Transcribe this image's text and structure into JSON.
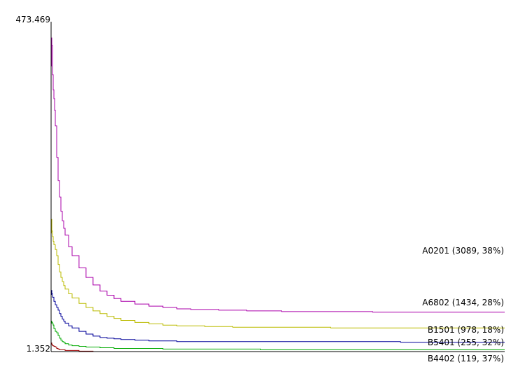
{
  "chart_data": {
    "type": "line",
    "title": "",
    "xlabel": "",
    "ylabel": "",
    "ylim": [
      1.352,
      473.469
    ],
    "y_tick_labels": [
      "473.469",
      "1.352"
    ],
    "grid": false,
    "legend": "end-of-line labels",
    "series": [
      {
        "name": "A0201 (3089, 38%)",
        "color": "#aa00aa",
        "x": [
          0,
          0.5,
          1,
          2,
          3,
          4,
          5,
          6,
          8,
          10,
          12,
          14,
          16,
          18,
          20,
          25,
          30,
          40,
          50,
          60,
          70,
          80,
          90,
          100,
          120,
          140,
          160,
          180,
          200,
          240,
          280,
          330,
          400,
          460,
          510,
          580,
          649
        ],
        "values": [
          420,
          461,
          450,
          407,
          385,
          372,
          355,
          332,
          286,
          252,
          228,
          207,
          193,
          182,
          172,
          155,
          142,
          124,
          110,
          99,
          90,
          84,
          79,
          75,
          71,
          68,
          66,
          64,
          63,
          62,
          61,
          60,
          60,
          59,
          59,
          59,
          59
        ]
      },
      {
        "name": "A6802 (1434, 28%)",
        "color": "#bbbb00",
        "x": [
          0,
          0.5,
          1,
          2,
          3,
          4,
          6,
          8,
          10,
          12,
          14,
          16,
          18,
          20,
          25,
          30,
          40,
          50,
          60,
          70,
          80,
          90,
          100,
          120,
          140,
          160,
          180,
          220,
          260,
          300,
          400,
          500,
          649
        ],
        "values": [
          175,
          195,
          178,
          170,
          163,
          158,
          151,
          142,
          129,
          118,
          110,
          104,
          98,
          93,
          86,
          80,
          72,
          66,
          61,
          57,
          53,
          50,
          47,
          44,
          42,
          40,
          39,
          38,
          37,
          37,
          36,
          36,
          36
        ]
      },
      {
        "name": "B1501 (978, 18%)",
        "color": "#000099",
        "x": [
          0,
          0.5,
          1,
          2,
          4,
          6,
          8,
          10,
          12,
          14,
          16,
          18,
          20,
          25,
          30,
          40,
          50,
          60,
          70,
          80,
          90,
          100,
          120,
          140,
          160,
          180,
          220,
          260,
          300,
          400,
          500,
          649
        ],
        "values": [
          85,
          91,
          86,
          81,
          75,
          70,
          66,
          62,
          57,
          53,
          49,
          46,
          43,
          39,
          36,
          31,
          27,
          24,
          22,
          21,
          20,
          19,
          18,
          17,
          17,
          16,
          16,
          16,
          16,
          16,
          15,
          15
        ]
      },
      {
        "name": "B5401 (255, 32%)",
        "color": "#00aa00",
        "x": [
          0,
          0.5,
          1,
          2,
          3,
          4,
          6,
          8,
          10,
          12,
          14,
          16,
          18,
          20,
          25,
          30,
          40,
          50,
          60,
          70,
          80,
          90,
          100,
          120,
          140,
          160,
          200,
          260,
          300,
          400,
          500,
          649
        ],
        "values": [
          43,
          46,
          44,
          42,
          40,
          35,
          31,
          29,
          25,
          21,
          18,
          16,
          15,
          13,
          11,
          10,
          9,
          8,
          8,
          7,
          7,
          6,
          6,
          6,
          6,
          5,
          5,
          5,
          4,
          4,
          4,
          4
        ]
      },
      {
        "name": "B4402 (119, 37%)",
        "color": "#990000",
        "x": [
          0,
          0.5,
          1,
          2,
          4,
          6,
          8,
          10,
          12,
          15,
          20,
          30,
          40,
          50,
          60,
          649
        ],
        "values": [
          12,
          14,
          12,
          10,
          9,
          8,
          6,
          5,
          4,
          4,
          3,
          3,
          2,
          2,
          1.352,
          1.352
        ]
      }
    ]
  }
}
